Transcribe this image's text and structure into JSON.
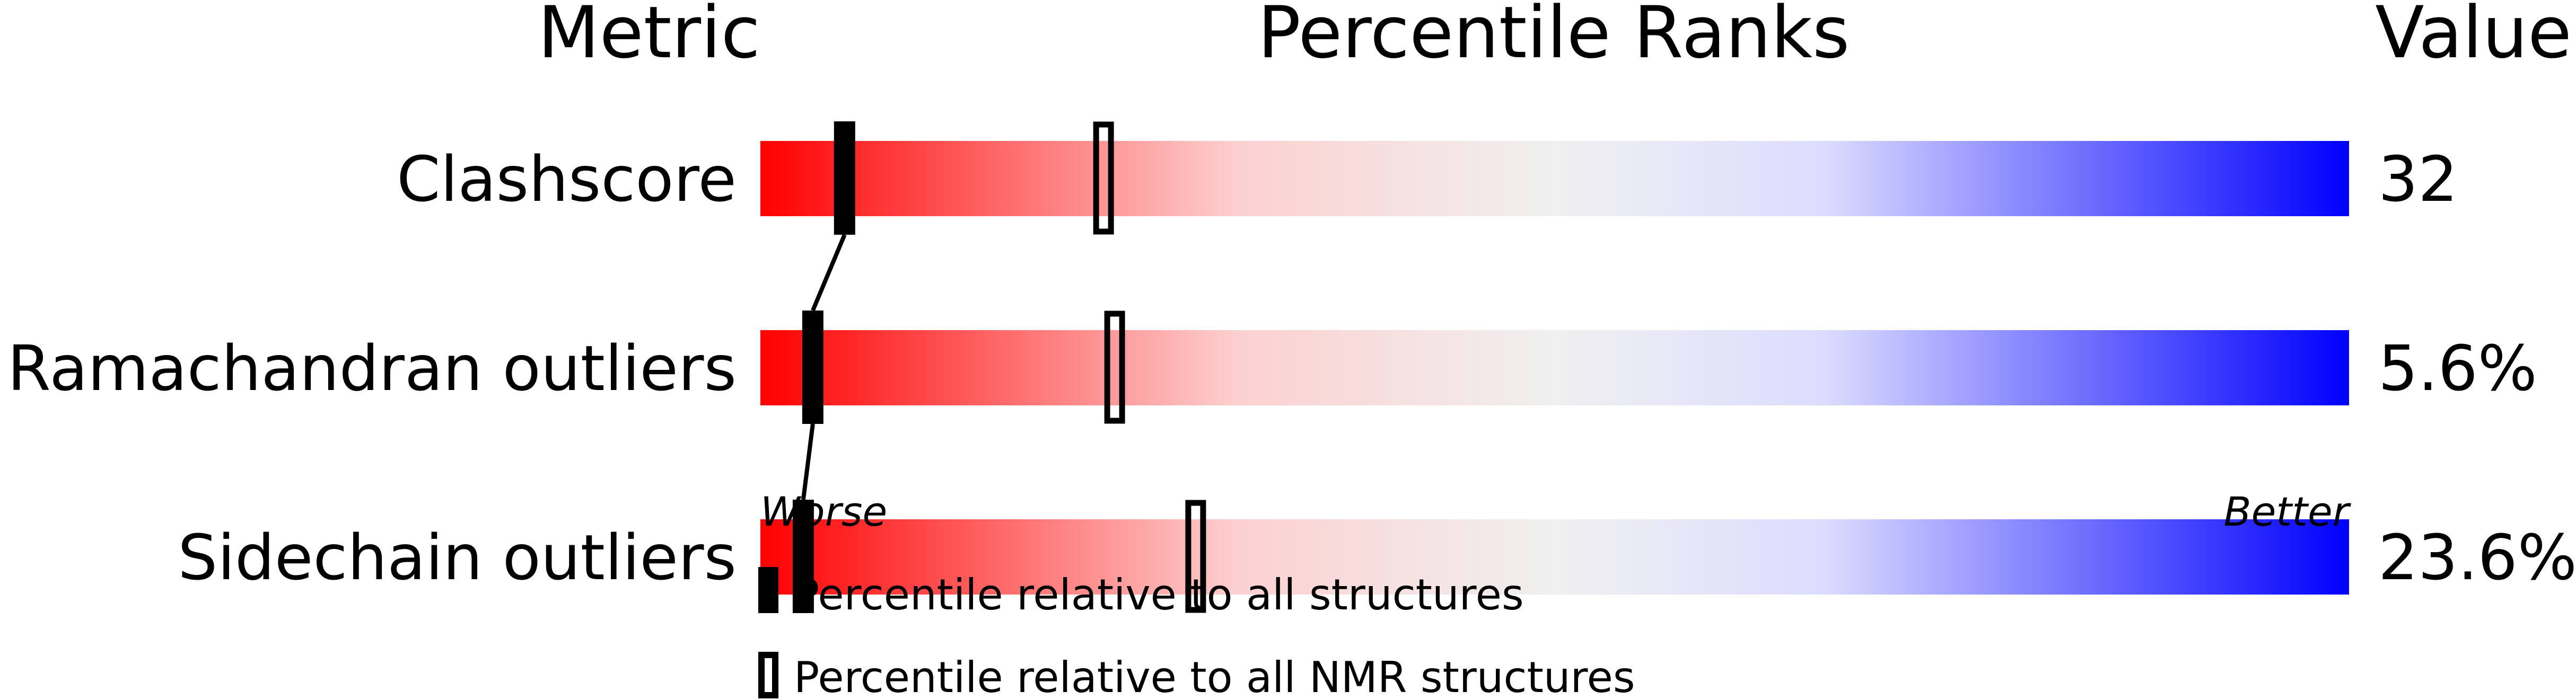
{
  "chart_data": {
    "type": "bar",
    "headers": {
      "metric": "Metric",
      "ranks": "Percentile Ranks",
      "value": "Value"
    },
    "xlim": [
      0,
      100
    ],
    "axis_labels": {
      "left": "Worse",
      "right": "Better"
    },
    "gradient_colors": [
      "#ff0000",
      "#fdd0d0",
      "#f0f0f0",
      "#dcdcff",
      "#0000ff"
    ],
    "rows": [
      {
        "metric": "Clashscore",
        "value": "32",
        "percentile_all": 5.3,
        "percentile_nmr": 21.6
      },
      {
        "metric": "Ramachandran outliers",
        "value": "5.6%",
        "percentile_all": 3.3,
        "percentile_nmr": 22.3
      },
      {
        "metric": "Sidechain outliers",
        "value": "23.6%",
        "percentile_all": 2.7,
        "percentile_nmr": 27.4
      }
    ],
    "legend": [
      {
        "marker": "filled",
        "label": "Percentile relative to all structures"
      },
      {
        "marker": "outline",
        "label": "Percentile relative to all NMR structures"
      }
    ]
  }
}
